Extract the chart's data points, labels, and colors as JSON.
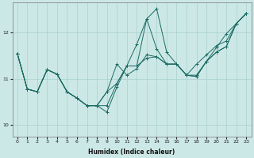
{
  "xlabel": "Humidex (Indice chaleur)",
  "bg_color": "#cce8e6",
  "grid_color": "#a8d0ce",
  "line_color": "#1a6b64",
  "xlim": [
    -0.5,
    23.5
  ],
  "ylim": [
    9.75,
    12.65
  ],
  "yticks": [
    10,
    11,
    12
  ],
  "xticks": [
    0,
    1,
    2,
    3,
    4,
    5,
    6,
    7,
    8,
    9,
    10,
    11,
    12,
    13,
    14,
    15,
    16,
    17,
    18,
    19,
    20,
    21,
    22,
    23
  ],
  "series": [
    [
      11.55,
      10.78,
      10.72,
      11.2,
      11.1,
      10.72,
      10.58,
      10.42,
      10.42,
      10.42,
      10.9,
      11.28,
      11.28,
      12.3,
      11.65,
      11.32,
      11.32,
      11.08,
      11.05,
      11.38,
      11.58,
      11.7,
      12.2,
      12.42
    ],
    [
      11.55,
      10.78,
      10.72,
      11.2,
      11.1,
      10.72,
      10.58,
      10.42,
      10.42,
      10.72,
      11.32,
      11.08,
      11.22,
      11.52,
      11.48,
      11.32,
      11.32,
      11.08,
      11.32,
      11.52,
      11.72,
      11.82,
      12.2,
      12.42
    ],
    [
      11.55,
      10.78,
      10.72,
      11.2,
      11.1,
      10.72,
      10.58,
      10.42,
      10.42,
      10.72,
      10.9,
      11.28,
      11.28,
      11.45,
      11.48,
      11.32,
      11.32,
      11.08,
      11.05,
      11.38,
      11.58,
      11.7,
      12.2,
      12.42
    ],
    [
      11.55,
      10.78,
      10.72,
      11.2,
      11.1,
      10.72,
      10.58,
      10.42,
      10.42,
      10.28,
      10.82,
      11.28,
      11.75,
      12.3,
      12.52,
      11.58,
      11.32,
      11.08,
      11.08,
      11.38,
      11.68,
      11.98,
      12.2,
      12.42
    ]
  ]
}
